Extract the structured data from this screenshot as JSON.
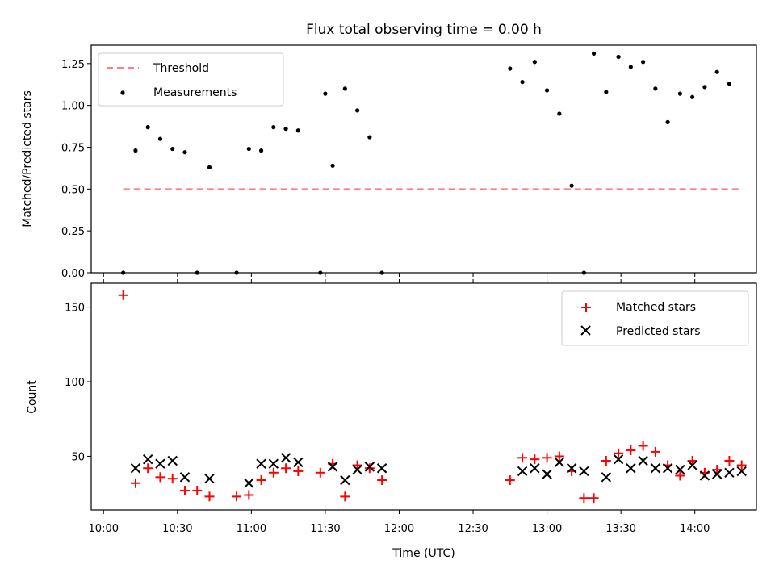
{
  "chart_data": [
    {
      "type": "scatter",
      "title": "Flux total observing time = 0.00 h",
      "xlabel": "",
      "ylabel": "Matched/Predicted stars",
      "ylim": [
        0,
        1.36
      ],
      "y_ticks": [
        "0.00",
        "0.25",
        "0.50",
        "0.75",
        "1.00",
        "1.25"
      ],
      "y_tick_values": [
        0,
        0.25,
        0.5,
        0.75,
        1.0,
        1.25
      ],
      "legend_position": "upper-left",
      "threshold": {
        "name": "Threshold",
        "value": 0.5,
        "x_start": "10:08",
        "x_end": "14:18",
        "color": "#ff7f7f"
      },
      "measurements": {
        "name": "Measurements",
        "color": "#000000",
        "x": [
          "10:08",
          "10:13",
          "10:18",
          "10:23",
          "10:28",
          "10:33",
          "10:38",
          "10:43",
          "10:54",
          "10:59",
          "11:04",
          "11:09",
          "11:14",
          "11:19",
          "11:28",
          "11:30",
          "11:33",
          "11:38",
          "11:43",
          "11:48",
          "11:53",
          "12:45",
          "12:50",
          "12:55",
          "13:00",
          "13:05",
          "13:10",
          "13:15",
          "13:19",
          "13:24",
          "13:29",
          "13:34",
          "13:39",
          "13:44",
          "13:49",
          "13:54",
          "13:59",
          "14:04",
          "14:09",
          "14:14",
          "14:19"
        ],
        "y": [
          0.0,
          0.73,
          0.87,
          0.8,
          0.74,
          0.72,
          0.0,
          0.63,
          0.0,
          0.74,
          0.73,
          0.87,
          0.86,
          0.85,
          0.0,
          1.07,
          0.64,
          1.1,
          0.97,
          0.81,
          0.0,
          1.22,
          1.14,
          1.26,
          1.09,
          0.95,
          0.52,
          0.0,
          1.31,
          1.08,
          1.29,
          1.23,
          1.26,
          1.1,
          0.9,
          1.07,
          1.05,
          1.11,
          1.2,
          1.13,
          null
        ]
      }
    },
    {
      "type": "scatter",
      "title": "",
      "xlabel": "Time (UTC)",
      "ylabel": "Count",
      "ylim": [
        14,
        166
      ],
      "y_ticks": [
        "50",
        "100",
        "150"
      ],
      "y_tick_values": [
        50,
        100,
        150
      ],
      "x_ticks": [
        "10:00",
        "10:30",
        "11:00",
        "11:30",
        "12:00",
        "12:30",
        "13:00",
        "13:30",
        "14:00"
      ],
      "x_tick_minutes": [
        600,
        630,
        660,
        690,
        720,
        750,
        780,
        810,
        840
      ],
      "xlim_minutes": [
        595,
        865
      ],
      "legend_position": "upper-right",
      "series": [
        {
          "name": "Matched stars",
          "marker": "plus",
          "color": "#ff0000",
          "x": [
            "10:08",
            "10:13",
            "10:18",
            "10:23",
            "10:28",
            "10:33",
            "10:38",
            "10:43",
            "10:54",
            "10:59",
            "11:04",
            "11:09",
            "11:14",
            "11:19",
            "11:28",
            "11:33",
            "11:38",
            "11:43",
            "11:48",
            "11:53",
            "12:45",
            "12:50",
            "12:55",
            "13:00",
            "13:05",
            "13:10",
            "13:15",
            "13:19",
            "13:24",
            "13:29",
            "13:34",
            "13:39",
            "13:44",
            "13:49",
            "13:54",
            "13:59",
            "14:04",
            "14:09",
            "14:14",
            "14:19"
          ],
          "y": [
            158,
            32,
            42,
            36,
            35,
            27,
            27,
            23,
            23,
            24,
            34,
            39,
            42,
            40,
            39,
            45,
            23,
            44,
            42,
            34,
            34,
            49,
            48,
            49,
            50,
            40,
            22,
            22,
            47,
            52,
            54,
            57,
            53,
            44,
            37,
            47,
            39,
            41,
            47,
            44
          ]
        },
        {
          "name": "Predicted stars",
          "marker": "x",
          "color": "#000000",
          "x": [
            "10:13",
            "10:18",
            "10:23",
            "10:28",
            "10:33",
            "10:43",
            "10:59",
            "11:04",
            "11:09",
            "11:14",
            "11:19",
            "11:33",
            "11:38",
            "11:43",
            "11:48",
            "11:53",
            "12:50",
            "12:55",
            "13:00",
            "13:05",
            "13:10",
            "13:15",
            "13:24",
            "13:29",
            "13:34",
            "13:39",
            "13:44",
            "13:49",
            "13:54",
            "13:59",
            "14:04",
            "14:09",
            "14:14",
            "14:19"
          ],
          "y": [
            42,
            48,
            45,
            47,
            36,
            35,
            32,
            45,
            45,
            49,
            46,
            43,
            34,
            41,
            43,
            42,
            40,
            42,
            38,
            46,
            42,
            40,
            36,
            48,
            42,
            47,
            42,
            42,
            41,
            44,
            37,
            38,
            39,
            40
          ]
        }
      ]
    }
  ]
}
